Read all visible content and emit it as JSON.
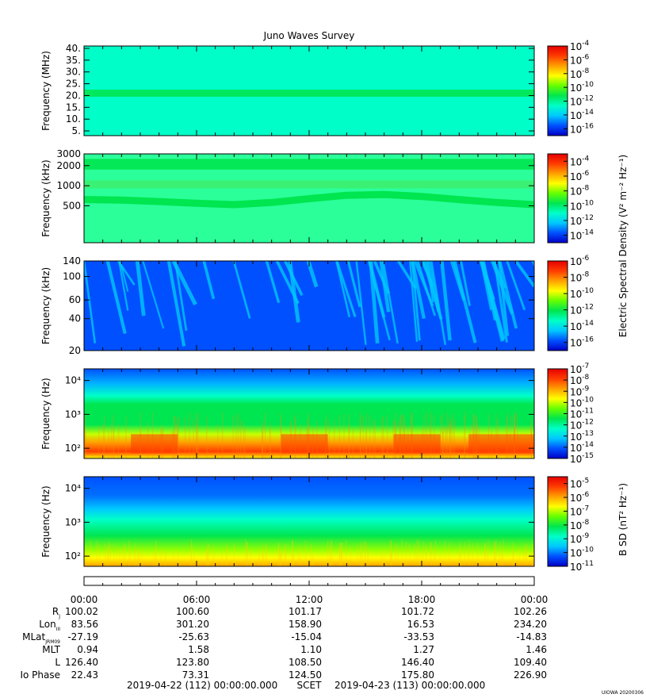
{
  "title": "Juno Waves Survey",
  "footer": {
    "start": "2019-04-22 (112) 00:00:00.000",
    "frame": "SCET",
    "end": "2019-04-23 (113) 00:00:00.000",
    "stamp": "UIOWA 20200306"
  },
  "time_labels": [
    "00:00",
    "06:00",
    "12:00",
    "18:00",
    "00:00"
  ],
  "ephemeris": [
    {
      "label": "R",
      "sub": "J",
      "values": [
        "100.02",
        "100.60",
        "101.17",
        "101.72",
        "102.26"
      ]
    },
    {
      "label": "Lon",
      "sub": "III",
      "values": [
        "83.56",
        "301.20",
        "158.90",
        "16.53",
        "234.20"
      ]
    },
    {
      "label": "MLat",
      "sub": "JRM09",
      "values": [
        "-27.19",
        "-25.63",
        "-15.04",
        "-33.53",
        "-14.83"
      ]
    },
    {
      "label": "MLT",
      "sub": "",
      "values": [
        "0.94",
        "1.58",
        "1.10",
        "1.27",
        "1.46"
      ]
    },
    {
      "label": "L",
      "sub": "",
      "values": [
        "126.40",
        "123.80",
        "108.50",
        "146.40",
        "109.40"
      ]
    },
    {
      "label": "Io Phase",
      "sub": "",
      "values": [
        "22.43",
        "73.31",
        "124.50",
        "175.80",
        "226.90"
      ]
    }
  ],
  "colors": {
    "colormap": [
      "#0000c8",
      "#0050ff",
      "#00c8ff",
      "#00ffc8",
      "#00e650",
      "#64ff00",
      "#ffff00",
      "#ffa000",
      "#ff3c00",
      "#e60000"
    ]
  },
  "shared_colorbar_label": "Electric Spectral Density (V² m⁻² Hz⁻¹)",
  "chart_data": [
    {
      "type": "heatmap",
      "panel": "hfr-high",
      "ylabel": "Frequency (MHz)",
      "yscale": "linear",
      "ylim": [
        3,
        41
      ],
      "yticks": [
        {
          "v": 40,
          "t": "40."
        },
        {
          "v": 35,
          "t": "35."
        },
        {
          "v": 30,
          "t": "30."
        },
        {
          "v": 25,
          "t": "25."
        },
        {
          "v": 20,
          "t": "20."
        },
        {
          "v": 15,
          "t": "15."
        },
        {
          "v": 10,
          "t": "10."
        },
        {
          "v": 5,
          "t": "5."
        }
      ],
      "colorbar": {
        "ticks": [
          -4,
          -6,
          -8,
          -10,
          -12,
          -14,
          -16
        ],
        "range": [
          -17,
          -4
        ]
      },
      "background": "#00ffc8",
      "features": [
        {
          "kind": "band",
          "center": 21,
          "width": 1.5,
          "color": "#00e650"
        }
      ]
    },
    {
      "type": "heatmap",
      "panel": "hfr-low",
      "ylabel": "Frequency (kHz)",
      "yscale": "log",
      "ylim": [
        140,
        3000
      ],
      "yticks": [
        {
          "v": 3000,
          "t": "3000"
        },
        {
          "v": 2000,
          "t": "2000"
        },
        {
          "v": 1000,
          "t": "1000"
        },
        {
          "v": 500,
          "t": "500"
        }
      ],
      "colorbar": {
        "ticks": [
          -4,
          -6,
          -8,
          -10,
          -12,
          -14
        ],
        "range": [
          -15,
          -3
        ]
      },
      "background": "#2bff9a",
      "features": [
        {
          "kind": "band",
          "center": 2100,
          "width": 0.08,
          "color": "#00e650"
        },
        {
          "kind": "band",
          "center": 1050,
          "width": 0.06,
          "color": "#3cf070"
        },
        {
          "kind": "curve",
          "times_h": [
            0,
            2,
            4,
            6,
            8,
            10,
            12,
            14,
            16,
            18,
            20,
            22,
            24
          ],
          "freq": [
            620,
            610,
            580,
            545,
            520,
            560,
            640,
            720,
            740,
            690,
            620,
            560,
            520
          ],
          "color": "#00e650"
        }
      ]
    },
    {
      "type": "heatmap",
      "panel": "lfr-high",
      "ylabel": "Frequency (kHz)",
      "yscale": "log",
      "ylim": [
        20,
        140
      ],
      "yticks": [
        {
          "v": 140,
          "t": "140"
        },
        {
          "v": 100,
          "t": "100"
        },
        {
          "v": 60,
          "t": "60"
        },
        {
          "v": 40,
          "t": "40"
        },
        {
          "v": 20,
          "t": "20"
        }
      ],
      "colorbar": {
        "ticks": [
          -6,
          -8,
          -10,
          -12,
          -14,
          -16
        ],
        "range": [
          -17,
          -6
        ]
      },
      "background": "#0050ff",
      "features": [
        {
          "kind": "bursts",
          "color": "#00c8ff"
        }
      ]
    },
    {
      "type": "heatmap",
      "panel": "lfr-low",
      "ylabel": "Frequency (Hz)",
      "yscale": "log",
      "ylim": [
        50,
        22000
      ],
      "yticks": [
        {
          "v": 10000,
          "t": "10⁴"
        },
        {
          "v": 1000,
          "t": "10³"
        },
        {
          "v": 100,
          "t": "10²"
        }
      ],
      "colorbar": {
        "ticks": [
          -7,
          -8,
          -9,
          -10,
          -11,
          -12,
          -13,
          -14,
          -15
        ],
        "range": [
          -15,
          -7
        ]
      },
      "gradient": [
        {
          "f": 22000,
          "c": "#0050ff"
        },
        {
          "f": 8000,
          "c": "#00b4ff"
        },
        {
          "f": 3500,
          "c": "#00ffc8"
        },
        {
          "f": 2000,
          "c": "#00e650"
        },
        {
          "f": 500,
          "c": "#00e650"
        },
        {
          "f": 260,
          "c": "#c8ff00"
        },
        {
          "f": 150,
          "c": "#ffa000"
        },
        {
          "f": 80,
          "c": "#ff3c00"
        },
        {
          "f": 50,
          "c": "#ffff00"
        }
      ]
    },
    {
      "type": "heatmap",
      "panel": "magnetic",
      "ylabel": "Frequency (Hz)",
      "yscale": "log",
      "ylim": [
        50,
        22000
      ],
      "yticks": [
        {
          "v": 10000,
          "t": "10⁴"
        },
        {
          "v": 1000,
          "t": "10³"
        },
        {
          "v": 100,
          "t": "10²"
        }
      ],
      "colorbar": {
        "label": "B SD (nT² Hz⁻¹)",
        "ticks": [
          -5,
          -6,
          -7,
          -8,
          -9,
          -10,
          -11
        ],
        "range": [
          -11,
          -4.5
        ]
      },
      "gradient": [
        {
          "f": 22000,
          "c": "#0050ff"
        },
        {
          "f": 6000,
          "c": "#0070ff"
        },
        {
          "f": 2500,
          "c": "#00c8ff"
        },
        {
          "f": 1200,
          "c": "#00ffc8"
        },
        {
          "f": 400,
          "c": "#00e650"
        },
        {
          "f": 150,
          "c": "#96ff00"
        },
        {
          "f": 90,
          "c": "#ffff00"
        },
        {
          "f": 50,
          "c": "#ffa000"
        }
      ]
    }
  ]
}
